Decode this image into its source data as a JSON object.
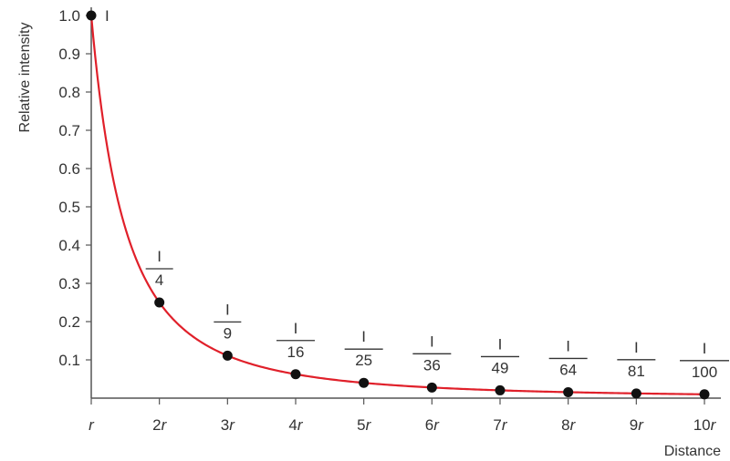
{
  "chart_data": {
    "type": "scatter",
    "title": "",
    "xlabel": "Distance",
    "ylabel": "Relative intensity",
    "x": [
      1,
      2,
      3,
      4,
      5,
      6,
      7,
      8,
      9,
      10
    ],
    "x_tick_labels": [
      {
        "num": "",
        "unit": "r"
      },
      {
        "num": "2",
        "unit": "r"
      },
      {
        "num": "3",
        "unit": "r"
      },
      {
        "num": "4",
        "unit": "r"
      },
      {
        "num": "5",
        "unit": "r"
      },
      {
        "num": "6",
        "unit": "r"
      },
      {
        "num": "7",
        "unit": "r"
      },
      {
        "num": "8",
        "unit": "r"
      },
      {
        "num": "9",
        "unit": "r"
      },
      {
        "num": "10",
        "unit": "r"
      }
    ],
    "y_ticks": [
      "0.1",
      "0.2",
      "0.3",
      "0.4",
      "0.5",
      "0.6",
      "0.7",
      "0.8",
      "0.9",
      "1.0"
    ],
    "series": [
      {
        "values": [
          1.0,
          0.25,
          0.111,
          0.0625,
          0.04,
          0.0278,
          0.0204,
          0.0156,
          0.0123,
          0.01
        ],
        "color": "#e0202a",
        "marker_color": "#111111"
      }
    ],
    "annotations": [
      {
        "num": "I",
        "den": ""
      },
      {
        "num": "I",
        "den": "4"
      },
      {
        "num": "I",
        "den": "9"
      },
      {
        "num": "I",
        "den": "16"
      },
      {
        "num": "I",
        "den": "25"
      },
      {
        "num": "I",
        "den": "36"
      },
      {
        "num": "I",
        "den": "49"
      },
      {
        "num": "I",
        "den": "64"
      },
      {
        "num": "I",
        "den": "81"
      },
      {
        "num": "I",
        "den": "100"
      }
    ],
    "xlim": [
      1,
      10
    ],
    "ylim": [
      0,
      1.0
    ],
    "grid": false,
    "curve": "inverse-square"
  }
}
